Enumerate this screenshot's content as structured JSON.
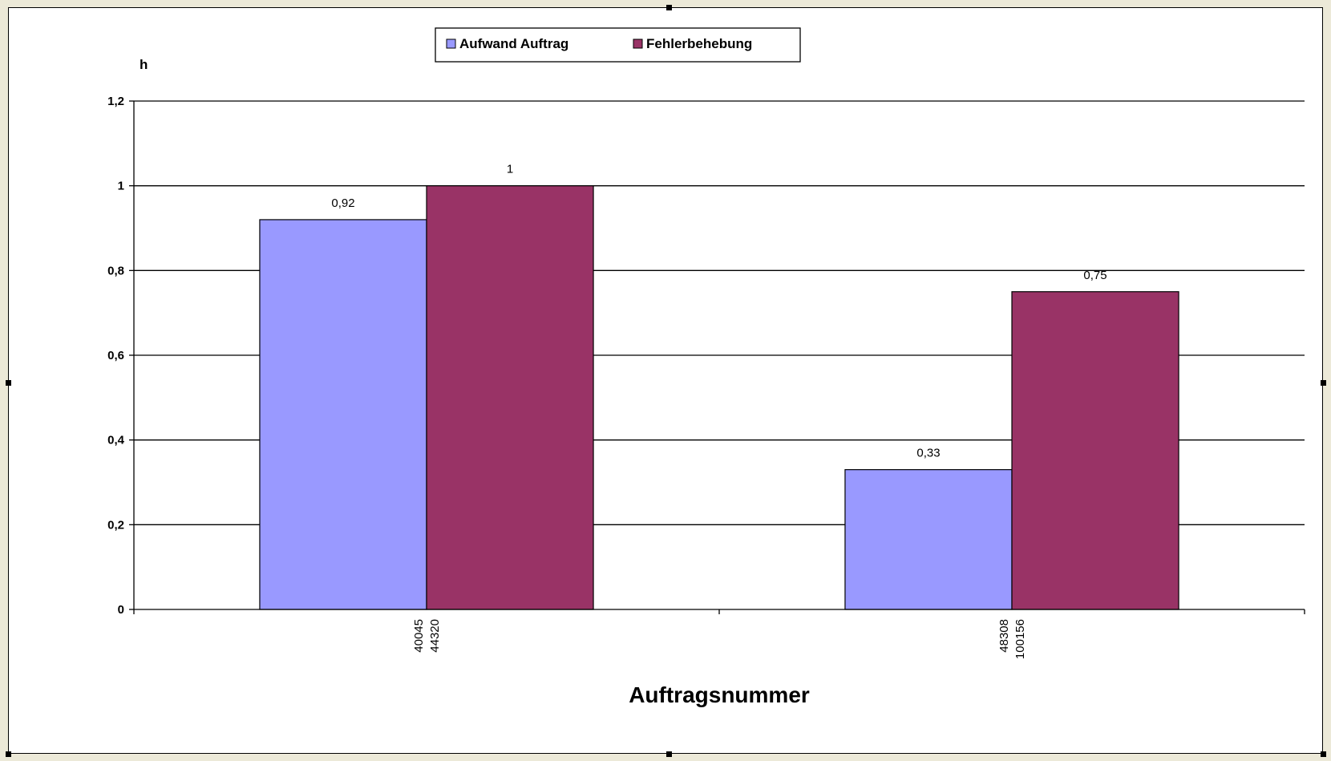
{
  "chart_data": {
    "type": "bar",
    "categories": [
      [
        "40045",
        "44320"
      ],
      [
        "48308",
        "100156"
      ]
    ],
    "series": [
      {
        "name": "Aufwand Auftrag",
        "color": "#9999ff",
        "values": [
          0.92,
          0.33
        ],
        "labels": [
          "0,92",
          "0,33"
        ]
      },
      {
        "name": "Fehlerbehebung",
        "color": "#993366",
        "values": [
          1,
          0.75
        ],
        "labels": [
          "1",
          "0,75"
        ]
      }
    ],
    "ylabel": "h",
    "xlabel": "Auftragsnummer",
    "ylim": [
      0,
      1.2
    ],
    "yticks": [
      {
        "value": 0,
        "label": "0"
      },
      {
        "value": 0.2,
        "label": "0,2"
      },
      {
        "value": 0.4,
        "label": "0,4"
      },
      {
        "value": 0.6,
        "label": "0,6"
      },
      {
        "value": 0.8,
        "label": "0,8"
      },
      {
        "value": 1,
        "label": "1"
      },
      {
        "value": 1.2,
        "label": "1,2"
      }
    ],
    "grid": true,
    "legend_position": "top"
  }
}
